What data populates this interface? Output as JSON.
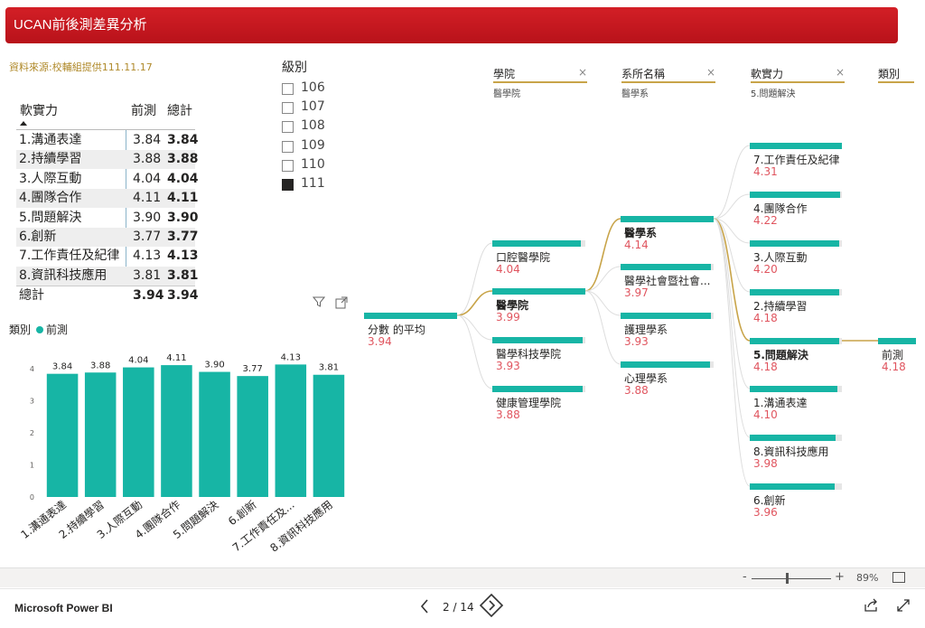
{
  "header": {
    "title": "UCAN前後測差異分析"
  },
  "source_note": "資料來源:校輔組提供111.11.17",
  "table": {
    "headers": [
      "軟實力",
      "前測",
      "總計"
    ],
    "rows": [
      {
        "name": "1.溝通表達",
        "pre": "3.84",
        "total": "3.84"
      },
      {
        "name": "2.持續學習",
        "pre": "3.88",
        "total": "3.88"
      },
      {
        "name": "3.人際互動",
        "pre": "4.04",
        "total": "4.04"
      },
      {
        "name": "4.團隊合作",
        "pre": "4.11",
        "total": "4.11"
      },
      {
        "name": "5.問題解決",
        "pre": "3.90",
        "total": "3.90"
      },
      {
        "name": "6.創新",
        "pre": "3.77",
        "total": "3.77"
      },
      {
        "name": "7.工作責任及紀律",
        "pre": "4.13",
        "total": "4.13"
      },
      {
        "name": "8.資訊科技應用",
        "pre": "3.81",
        "total": "3.81"
      }
    ],
    "total_row": {
      "name": "總計",
      "pre": "3.94",
      "total": "3.94"
    }
  },
  "slicer": {
    "title": "級別",
    "items": [
      {
        "label": "106",
        "checked": false
      },
      {
        "label": "107",
        "checked": false
      },
      {
        "label": "108",
        "checked": false
      },
      {
        "label": "109",
        "checked": false
      },
      {
        "label": "110",
        "checked": false
      },
      {
        "label": "111",
        "checked": true
      }
    ]
  },
  "chart_data": {
    "type": "bar",
    "legend_title": "類別",
    "categories": [
      "1.溝通表達",
      "2.持續學習",
      "3.人際互動",
      "4.團隊合作",
      "5.問題解決",
      "6.創新",
      "7.工作責任及...",
      "8.資訊科技應用"
    ],
    "series": [
      {
        "name": "前測",
        "values": [
          3.84,
          3.88,
          4.04,
          4.11,
          3.9,
          3.77,
          4.13,
          3.81
        ],
        "labels": [
          "3.84",
          "3.88",
          "4.04",
          "4.11",
          "3.90",
          "3.77",
          "4.13",
          "3.81"
        ],
        "color": "#17b5a5"
      }
    ],
    "ylim": [
      0,
      4
    ],
    "yticks": [
      0,
      1,
      2,
      3,
      4
    ],
    "grid": false,
    "legend_position": "top-left"
  },
  "decomp": {
    "headers": [
      {
        "name": "學院",
        "sub": "醫學院"
      },
      {
        "name": "系所名稱",
        "sub": "醫學系"
      },
      {
        "name": "軟實力",
        "sub": "5.問題解決"
      },
      {
        "name": "類別",
        "sub": ""
      }
    ],
    "root": {
      "label": "分數 的平均",
      "value": "3.94"
    },
    "colleges": [
      {
        "label": "口腔醫學院",
        "value": "4.04",
        "fill": 0.95,
        "selected": false
      },
      {
        "label": "醫學院",
        "value": "3.99",
        "fill": 1.0,
        "selected": true
      },
      {
        "label": "醫學科技學院",
        "value": "3.93",
        "fill": 0.97,
        "selected": false
      },
      {
        "label": "健康管理學院",
        "value": "3.88",
        "fill": 0.97,
        "selected": false
      }
    ],
    "departments": [
      {
        "label": "醫學系",
        "value": "4.14",
        "fill": 1.0,
        "selected": true
      },
      {
        "label": "醫學社會暨社會...",
        "value": "3.97",
        "fill": 0.97,
        "selected": false
      },
      {
        "label": "護理學系",
        "value": "3.93",
        "fill": 0.97,
        "selected": false
      },
      {
        "label": "心理學系",
        "value": "3.88",
        "fill": 0.96,
        "selected": false
      }
    ],
    "skills": [
      {
        "label": "7.工作責任及紀律",
        "value": "4.31",
        "fill": 1.0,
        "selected": false
      },
      {
        "label": "4.團隊合作",
        "value": "4.22",
        "fill": 0.98,
        "selected": false
      },
      {
        "label": "3.人際互動",
        "value": "4.20",
        "fill": 0.97,
        "selected": false
      },
      {
        "label": "2.持續學習",
        "value": "4.18",
        "fill": 0.97,
        "selected": false
      },
      {
        "label": "5.問題解決",
        "value": "4.18",
        "fill": 0.97,
        "selected": true
      },
      {
        "label": "1.溝通表達",
        "value": "4.10",
        "fill": 0.95,
        "selected": false
      },
      {
        "label": "8.資訊科技應用",
        "value": "3.98",
        "fill": 0.93,
        "selected": false
      },
      {
        "label": "6.創新",
        "value": "3.96",
        "fill": 0.92,
        "selected": false
      }
    ],
    "category": [
      {
        "label": "前測",
        "value": "4.18",
        "fill": 1.0,
        "selected": false
      }
    ]
  },
  "zoom": {
    "minus": "-",
    "plus": "+",
    "level": "89%"
  },
  "footer": {
    "brand": "Microsoft Power BI",
    "page": "2 / 14"
  }
}
